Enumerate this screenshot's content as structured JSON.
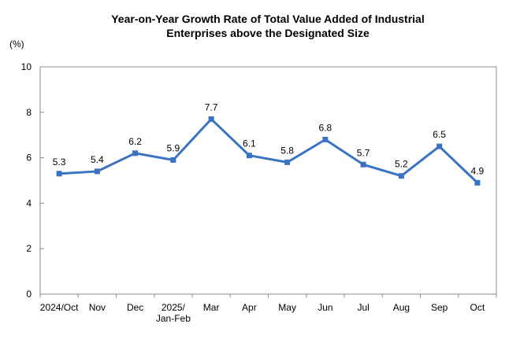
{
  "page": {
    "background": "#ffffff"
  },
  "title_line1": "Year-on-Year Growth Rate of Total Value Added of Industrial",
  "title_line2": "Enterprises above the Designated Size",
  "unit_label": "(%)",
  "chart_data": {
    "type": "line",
    "title": "Year-on-Year Growth Rate of Total Value Added of Industrial Enterprises above the Designated Size",
    "ylabel": "(%)",
    "xlabel": "",
    "categories": [
      "2024/Oct",
      "Nov",
      "Dec",
      "2025/\nJan-Feb",
      "Mar",
      "Apr",
      "May",
      "Jun",
      "Jul",
      "Aug",
      "Sep",
      "Oct"
    ],
    "values": [
      5.3,
      5.4,
      6.2,
      5.9,
      7.7,
      6.1,
      5.8,
      6.8,
      5.7,
      5.2,
      6.5,
      4.9
    ],
    "ylim": [
      0,
      10
    ],
    "yticks": [
      0,
      2,
      4,
      6,
      8,
      10
    ],
    "grid": false,
    "legend_position": "none",
    "line_color": "#3A73C2",
    "axis_color": "#8C8C8C",
    "marker": "square",
    "data_labels": true
  }
}
